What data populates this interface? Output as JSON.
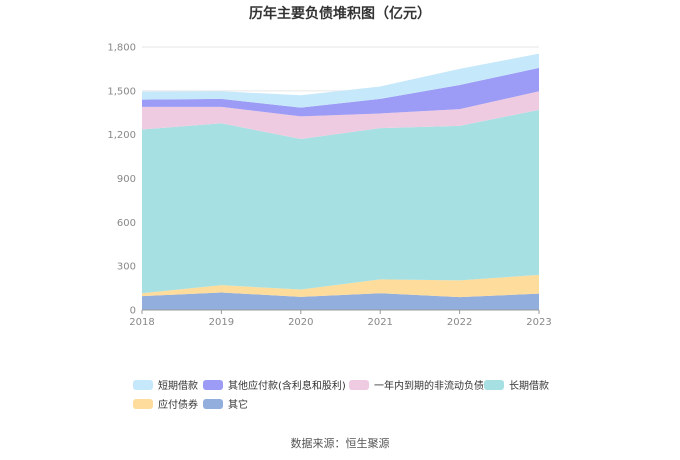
{
  "chart_data": {
    "type": "area",
    "stacked": true,
    "title": "历年主要负债堆积图（亿元）",
    "x": [
      "2018",
      "2019",
      "2020",
      "2021",
      "2022",
      "2023"
    ],
    "y_ticks": [
      "0",
      "300",
      "600",
      "900",
      "1,200",
      "1,500",
      "1,800"
    ],
    "ylim": [
      0,
      1800
    ],
    "grid": true,
    "legend_position": "bottom",
    "series": [
      {
        "name": "其它",
        "color": "#92aedd",
        "values": [
          95,
          120,
          90,
          115,
          88,
          112
        ]
      },
      {
        "name": "应付债券",
        "color": "#fddc9c",
        "values": [
          20,
          50,
          50,
          95,
          115,
          128
        ]
      },
      {
        "name": "长期借款",
        "color": "#a7e0e2",
        "values": [
          1120,
          1108,
          1030,
          1035,
          1057,
          1130
        ]
      },
      {
        "name": "一年内到期的非流动负债",
        "color": "#efcbe1",
        "values": [
          155,
          112,
          155,
          100,
          115,
          127
        ]
      },
      {
        "name": "其他应付款(含利息和股利)",
        "color": "#9c9bf5",
        "values": [
          50,
          55,
          60,
          100,
          165,
          160
        ]
      },
      {
        "name": "短期借款",
        "color": "#c6e8fb",
        "values": [
          55,
          52,
          85,
          85,
          110,
          98
        ]
      }
    ],
    "legend_order": [
      "短期借款",
      "其他应付款(含利息和股利)",
      "一年内到期的非流动负债",
      "长期借款",
      "应付债券",
      "其它"
    ],
    "source": "数据来源：恒生聚源"
  }
}
